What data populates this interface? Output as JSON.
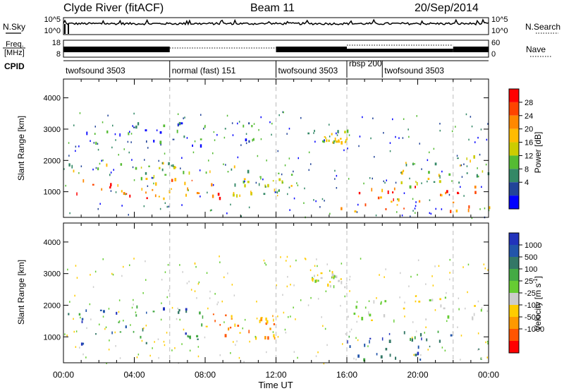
{
  "header": {
    "station": "Clyde River (fitACF)",
    "beam": "Beam 11",
    "date": "20/Sep/2014"
  },
  "noise_panel": {
    "left_label": "N.Sky",
    "left_ticks": [
      "10^5",
      "10^0"
    ],
    "right_ticks": [
      "10^5",
      "10^0"
    ],
    "right_label": "N.Search"
  },
  "freq_panel": {
    "left_label_top": "Freq.",
    "left_label_bottom": "[MHz]",
    "left_ticks": [
      "18",
      "8"
    ],
    "right_ticks": [
      "60",
      "0"
    ],
    "right_label": "Nave"
  },
  "cpid_panel": {
    "label": "CPID",
    "segments": [
      {
        "name": "twofsound 3503",
        "start": 0,
        "end": 6
      },
      {
        "name": "normal (fast) 151",
        "start": 6,
        "end": 12
      },
      {
        "name": "twofsound 3503",
        "start": 12,
        "end": 16
      },
      {
        "name": "rbsp 200",
        "start": 16,
        "end": 18
      },
      {
        "name": "twofsound 3503",
        "start": 18,
        "end": 24
      }
    ]
  },
  "x_axis": {
    "label": "Time UT",
    "ticks": [
      "00:00",
      "04:00",
      "08:00",
      "12:00",
      "16:00",
      "20:00",
      "00:00"
    ]
  },
  "power_panel": {
    "ylabel": "Slant Range [km]",
    "yticks": [
      "1000",
      "2000",
      "3000",
      "4000"
    ],
    "colorbar_label": "Power [dB]",
    "colorbar_ticks": [
      "28",
      "24",
      "20",
      "16",
      "12",
      "8",
      "4"
    ],
    "colors": [
      "#ff0000",
      "#ff4400",
      "#ff8800",
      "#ffbb00",
      "#cccc00",
      "#55bb33",
      "#338866",
      "#224499",
      "#0000ff"
    ]
  },
  "velocity_panel": {
    "ylabel": "Slant Range [km]",
    "yticks": [
      "1000",
      "2000",
      "3000",
      "4000"
    ],
    "colorbar_label": "Velocity [m s",
    "colorbar_label_sup": "-1",
    "colorbar_label_end": "]",
    "colorbar_ticks": [
      "1000",
      "500",
      "100",
      "25",
      "-25",
      "-100",
      "-500",
      "-1000"
    ],
    "colors": [
      "#2233bb",
      "#2255aa",
      "#337766",
      "#44aa44",
      "#66cc33",
      "#cccccc",
      "#ffcc00",
      "#ff9900",
      "#ff5500",
      "#ff0000"
    ]
  },
  "chart_data": {
    "type": "heatmap",
    "x_unit": "hours UT",
    "x_range": [
      0,
      24
    ],
    "y_range_km": [
      180,
      4600
    ],
    "power_regions": [
      {
        "t0": 0,
        "t1": 9.5,
        "r0": 800,
        "r1": 1450,
        "level": "high"
      },
      {
        "t0": 9.5,
        "t1": 13,
        "r0": 900,
        "r1": 1700,
        "level": "medium"
      },
      {
        "t0": 0,
        "t1": 10,
        "r0": 1400,
        "r1": 2000,
        "level": "medium"
      },
      {
        "t0": 1,
        "t1": 11,
        "r0": 2500,
        "r1": 3300,
        "level": "low"
      },
      {
        "t0": 13.7,
        "t1": 16,
        "r0": 2600,
        "r1": 3000,
        "level": "medium"
      },
      {
        "t0": 15.5,
        "t1": 24,
        "r0": 400,
        "r1": 1200,
        "level": "high"
      },
      {
        "t0": 19,
        "t1": 24,
        "r0": 1200,
        "r1": 2200,
        "level": "medium"
      }
    ],
    "velocity_regions": [
      {
        "t0": 0,
        "t1": 8,
        "r0": 700,
        "r1": 2000,
        "velocity": "positive"
      },
      {
        "t0": 8,
        "t1": 12,
        "r0": 1000,
        "r1": 1800,
        "velocity": "negative"
      },
      {
        "t0": 14,
        "t1": 16,
        "r0": 2600,
        "r1": 3100,
        "velocity": "near-zero"
      },
      {
        "t0": 16,
        "t1": 24,
        "r0": 300,
        "r1": 1200,
        "velocity": "positive"
      },
      {
        "t0": 16,
        "t1": 24,
        "r0": 1500,
        "r1": 2300,
        "velocity": "near-zero"
      }
    ]
  }
}
